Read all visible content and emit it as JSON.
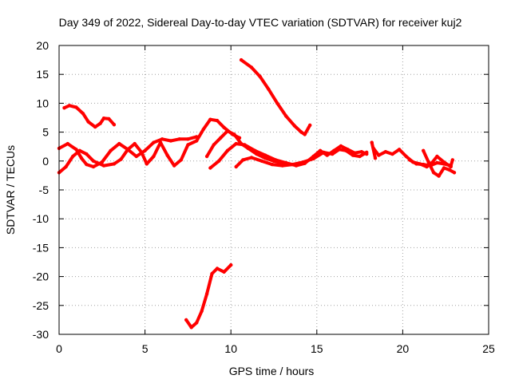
{
  "chart_data": {
    "type": "line",
    "title": "Day 349 of 2022, Sidereal Day-to-day VTEC variation (SDTVAR) for receiver kuj2",
    "xlabel": "GPS time / hours",
    "ylabel": "SDTVAR / TECUs",
    "xlim": [
      0,
      25
    ],
    "ylim": [
      -30,
      20
    ],
    "xticks": [
      0,
      5,
      10,
      15,
      20,
      25
    ],
    "yticks": [
      -30,
      -25,
      -20,
      -15,
      -10,
      -5,
      0,
      5,
      10,
      15,
      20
    ],
    "grid": true,
    "legend": "none",
    "series_color": "#ff0000",
    "series": [
      {
        "name": "trace-a",
        "points": [
          [
            0.3,
            9.2
          ],
          [
            0.6,
            9.6
          ],
          [
            1.0,
            9.3
          ],
          [
            1.4,
            8.2
          ],
          [
            1.7,
            6.8
          ],
          [
            2.1,
            5.9
          ],
          [
            2.4,
            6.5
          ],
          [
            2.6,
            7.4
          ],
          [
            2.9,
            7.3
          ],
          [
            3.2,
            6.3
          ]
        ]
      },
      {
        "name": "trace-b",
        "points": [
          [
            10.6,
            17.5
          ],
          [
            11.2,
            16.2
          ],
          [
            11.7,
            14.6
          ],
          [
            12.2,
            12.4
          ],
          [
            12.7,
            10.0
          ],
          [
            13.2,
            7.8
          ],
          [
            13.7,
            6.1
          ],
          [
            14.1,
            5.0
          ],
          [
            14.3,
            4.6
          ],
          [
            14.6,
            6.2
          ]
        ]
      },
      {
        "name": "trace-c",
        "points": [
          [
            7.4,
            -27.5
          ],
          [
            7.7,
            -28.8
          ],
          [
            8.0,
            -28.0
          ],
          [
            8.3,
            -26.0
          ],
          [
            8.6,
            -23.0
          ],
          [
            8.9,
            -19.5
          ],
          [
            9.2,
            -18.6
          ],
          [
            9.6,
            -19.2
          ],
          [
            10.0,
            -18.0
          ]
        ]
      },
      {
        "name": "trace-d",
        "points": [
          [
            0.0,
            2.2
          ],
          [
            0.5,
            3.0
          ],
          [
            1.0,
            2.0
          ],
          [
            1.3,
            0.5
          ],
          [
            1.6,
            -0.6
          ],
          [
            2.0,
            -1.0
          ],
          [
            2.5,
            -0.2
          ],
          [
            3.0,
            1.8
          ],
          [
            3.5,
            3.0
          ],
          [
            4.0,
            2.0
          ],
          [
            4.5,
            0.8
          ],
          [
            5.0,
            1.8
          ],
          [
            5.5,
            3.2
          ],
          [
            6.0,
            3.8
          ],
          [
            6.5,
            3.5
          ],
          [
            7.0,
            3.8
          ],
          [
            7.5,
            3.8
          ],
          [
            8.0,
            4.2
          ]
        ]
      },
      {
        "name": "trace-e",
        "points": [
          [
            0.0,
            -2.0
          ],
          [
            0.4,
            -1.0
          ],
          [
            0.8,
            0.8
          ],
          [
            1.2,
            1.8
          ],
          [
            1.6,
            1.2
          ],
          [
            2.0,
            0.0
          ],
          [
            2.6,
            -0.8
          ],
          [
            3.2,
            -0.5
          ],
          [
            3.6,
            0.3
          ],
          [
            4.0,
            2.0
          ],
          [
            4.4,
            3.0
          ],
          [
            4.8,
            1.5
          ],
          [
            5.1,
            -0.5
          ],
          [
            5.5,
            0.8
          ],
          [
            5.9,
            3.2
          ],
          [
            6.3,
            1.0
          ],
          [
            6.7,
            -0.8
          ],
          [
            7.1,
            0.2
          ],
          [
            7.5,
            2.8
          ],
          [
            8.0,
            3.5
          ],
          [
            8.4,
            5.5
          ],
          [
            8.8,
            7.2
          ],
          [
            9.2,
            7.0
          ],
          [
            9.6,
            5.8
          ],
          [
            10.1,
            4.6
          ],
          [
            10.5,
            4.0
          ]
        ]
      },
      {
        "name": "trace-f",
        "points": [
          [
            8.6,
            0.8
          ],
          [
            9.0,
            2.8
          ],
          [
            9.4,
            4.0
          ],
          [
            9.8,
            5.2
          ],
          [
            10.2,
            4.6
          ],
          [
            10.6,
            3.0
          ],
          [
            11.0,
            2.2
          ],
          [
            11.5,
            1.2
          ],
          [
            12.0,
            0.5
          ],
          [
            12.5,
            0.0
          ],
          [
            13.0,
            -0.4
          ],
          [
            13.5,
            -0.6
          ]
        ]
      },
      {
        "name": "trace-g",
        "points": [
          [
            8.8,
            -1.2
          ],
          [
            9.3,
            0.0
          ],
          [
            9.8,
            1.8
          ],
          [
            10.3,
            3.0
          ],
          [
            10.8,
            2.8
          ],
          [
            11.4,
            1.8
          ],
          [
            12.0,
            1.0
          ],
          [
            12.6,
            0.2
          ],
          [
            13.2,
            -0.3
          ],
          [
            13.8,
            -0.8
          ],
          [
            14.3,
            -0.4
          ],
          [
            14.8,
            0.8
          ],
          [
            15.2,
            1.8
          ],
          [
            15.6,
            1.0
          ],
          [
            16.0,
            1.8
          ],
          [
            16.4,
            2.6
          ],
          [
            16.8,
            2.0
          ],
          [
            17.2,
            1.4
          ],
          [
            17.6,
            1.6
          ],
          [
            17.9,
            1.2
          ]
        ]
      },
      {
        "name": "trace-h",
        "points": [
          [
            10.3,
            -1.0
          ],
          [
            10.7,
            0.2
          ],
          [
            11.2,
            0.6
          ],
          [
            11.8,
            0.0
          ],
          [
            12.4,
            -0.6
          ],
          [
            13.0,
            -0.8
          ],
          [
            13.6,
            -0.6
          ],
          [
            14.2,
            -0.2
          ],
          [
            14.8,
            0.4
          ],
          [
            15.4,
            1.5
          ],
          [
            15.9,
            1.2
          ],
          [
            16.3,
            2.0
          ],
          [
            16.7,
            1.8
          ],
          [
            17.1,
            1.0
          ],
          [
            17.5,
            0.8
          ],
          [
            17.9,
            1.5
          ]
        ]
      },
      {
        "name": "trace-i",
        "points": [
          [
            18.3,
            2.2
          ],
          [
            18.6,
            1.0
          ],
          [
            19.0,
            1.6
          ],
          [
            19.4,
            1.2
          ],
          [
            19.8,
            2.0
          ],
          [
            20.2,
            0.8
          ],
          [
            20.6,
            -0.2
          ],
          [
            21.0,
            -0.5
          ],
          [
            21.4,
            -1.0
          ],
          [
            21.7,
            -0.3
          ],
          [
            22.0,
            0.8
          ],
          [
            22.4,
            -0.2
          ],
          [
            22.8,
            -1.0
          ]
        ]
      },
      {
        "name": "trace-j",
        "points": [
          [
            20.4,
            0.2
          ],
          [
            20.8,
            -0.5
          ],
          [
            21.2,
            -0.6
          ],
          [
            21.6,
            -0.8
          ],
          [
            22.0,
            -0.3
          ],
          [
            22.4,
            -0.5
          ],
          [
            22.8,
            -0.8
          ],
          [
            22.9,
            0.2
          ]
        ]
      },
      {
        "name": "trace-k",
        "points": [
          [
            21.2,
            1.8
          ],
          [
            21.5,
            -0.2
          ],
          [
            21.8,
            -2.0
          ],
          [
            22.1,
            -2.6
          ],
          [
            22.4,
            -1.2
          ],
          [
            22.7,
            -1.5
          ],
          [
            23.0,
            -2.0
          ]
        ]
      },
      {
        "name": "trace-l",
        "points": [
          [
            18.2,
            3.2
          ],
          [
            18.4,
            0.5
          ]
        ]
      }
    ]
  }
}
